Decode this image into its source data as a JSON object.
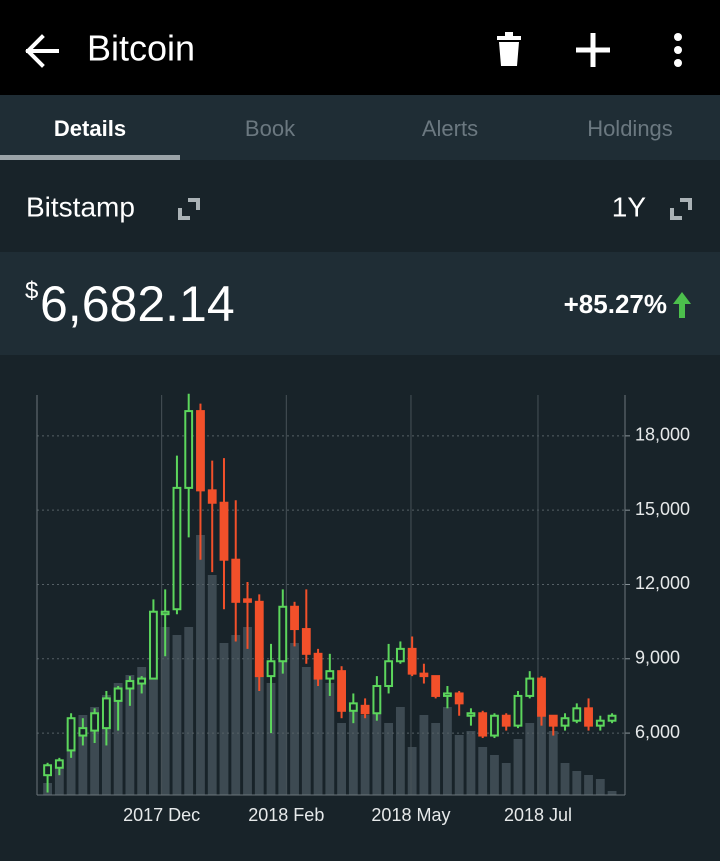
{
  "header": {
    "title": "Bitcoin"
  },
  "tabs": [
    "Details",
    "Book",
    "Alerts",
    "Holdings"
  ],
  "exchange": "Bitstamp",
  "range": "1Y",
  "price": {
    "currency": "$",
    "value": "6,682.14",
    "change": "+85.27%"
  },
  "chart_data": {
    "type": "candlestick",
    "up_color": "#5cd65c",
    "down_color": "#f2502a",
    "volume_color": "#3d4a52",
    "x": [
      0,
      1,
      2,
      3,
      4,
      5,
      6,
      7,
      8,
      9,
      10,
      11,
      12,
      13,
      14,
      15,
      16,
      17,
      18,
      19,
      20,
      21,
      22,
      23,
      24,
      25,
      26,
      27,
      28,
      29,
      30,
      31,
      32,
      33,
      34,
      35,
      36,
      37,
      38,
      39,
      40,
      41,
      42,
      43,
      44,
      45,
      46,
      47,
      48
    ],
    "open": [
      4300,
      4600,
      5300,
      5900,
      6100,
      6200,
      7300,
      7800,
      8000,
      8200,
      10800,
      11000,
      15900,
      19000,
      15800,
      15300,
      13000,
      11400,
      11300,
      8300,
      8900,
      11100,
      10200,
      9200,
      8200,
      8500,
      6900,
      7100,
      6800,
      7900,
      8900,
      9400,
      8400,
      8300,
      7500,
      7600,
      6700,
      6800,
      5900,
      6700,
      6300,
      7500,
      8200,
      6700,
      6300,
      6500,
      7000,
      6300,
      6500
    ],
    "high": [
      4800,
      5000,
      6800,
      6600,
      7000,
      7700,
      7900,
      8300,
      8300,
      11400,
      11800,
      17200,
      19700,
      19300,
      17000,
      17100,
      15400,
      12100,
      11600,
      9600,
      11800,
      11300,
      11800,
      9400,
      9200,
      8700,
      7600,
      7400,
      8300,
      9600,
      9700,
      9900,
      8800,
      8300,
      7900,
      7700,
      7000,
      6900,
      6800,
      6800,
      7700,
      8500,
      8300,
      6700,
      6800,
      7200,
      7400,
      6700,
      6800
    ],
    "low": [
      3600,
      4300,
      5000,
      5500,
      5600,
      5500,
      6100,
      7100,
      7600,
      8200,
      9100,
      10800,
      13900,
      13000,
      12500,
      11000,
      9700,
      9400,
      7700,
      6000,
      8400,
      9500,
      8800,
      7900,
      7500,
      6600,
      6400,
      6600,
      6500,
      7600,
      8800,
      8300,
      8000,
      7400,
      7000,
      6700,
      6300,
      5800,
      5800,
      6100,
      6200,
      7400,
      6300,
      5900,
      6100,
      6400,
      6100,
      6100,
      6400
    ],
    "close": [
      4700,
      4900,
      6600,
      6200,
      6800,
      7400,
      7800,
      8100,
      8200,
      10900,
      10900,
      15900,
      19000,
      15800,
      15300,
      13000,
      11300,
      11300,
      8300,
      8900,
      11100,
      10200,
      9200,
      8200,
      8500,
      6900,
      7200,
      6800,
      7900,
      8900,
      9400,
      8400,
      8300,
      7500,
      7600,
      7200,
      6800,
      5900,
      6700,
      6300,
      7500,
      8200,
      6700,
      6300,
      6600,
      7000,
      6300,
      6500,
      6700
    ],
    "volumes": [
      3,
      8,
      18,
      20,
      22,
      25,
      28,
      30,
      32,
      38,
      42,
      40,
      42,
      65,
      55,
      38,
      40,
      42,
      30,
      28,
      35,
      38,
      32,
      30,
      28,
      18,
      22,
      20,
      25,
      18,
      22,
      12,
      20,
      18,
      22,
      15,
      16,
      12,
      10,
      8,
      14,
      18,
      22,
      16,
      8,
      6,
      5,
      4,
      1
    ],
    "volume_lim": [
      0,
      100
    ],
    "xlim": [
      -0.9,
      49.1
    ],
    "xticks": [
      {
        "value": 9.7,
        "label": "2017 Dec"
      },
      {
        "value": 20.3,
        "label": "2018 Feb"
      },
      {
        "value": 30.9,
        "label": "2018 May"
      },
      {
        "value": 41.7,
        "label": "2018 Jul"
      }
    ],
    "ylim": [
      3500,
      19650
    ],
    "yticks": [
      {
        "value": 6000,
        "label": "6,000"
      },
      {
        "value": 9000,
        "label": "9,000"
      },
      {
        "value": 12000,
        "label": "12,000"
      },
      {
        "value": 15000,
        "label": "15,000"
      },
      {
        "value": 18000,
        "label": "18,000"
      }
    ],
    "grid": true
  }
}
